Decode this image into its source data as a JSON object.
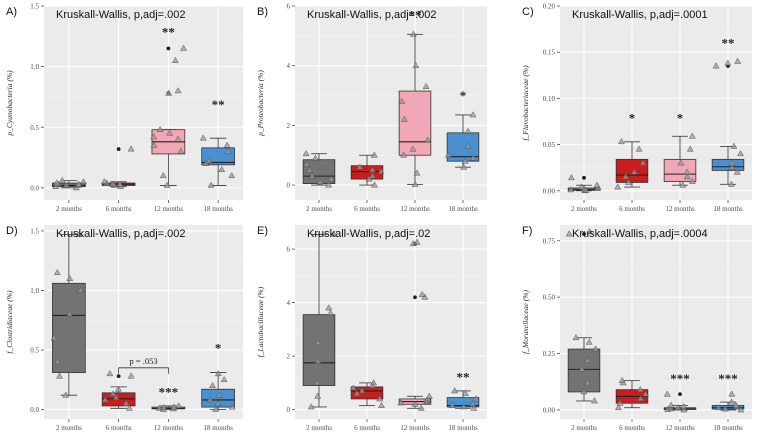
{
  "colors": {
    "panel_bg": "#ebebeb",
    "grid_major": "#ffffff",
    "grid_minor": "#f4f4f4",
    "axis_text": "#4d4d4d",
    "box_2m": "#737373",
    "box_6m": "#c81e1e",
    "box_12m": "#f2a7b6",
    "box_18m": "#4a90cf",
    "point_tri": "#9a9a9a",
    "point_dot": "#222222"
  },
  "chart_data": [
    {
      "id": "A",
      "panel_label": "A)",
      "type": "boxplot",
      "title": "Kruskall-Wallis, p,adj=.002",
      "ylabel": "p_Cyanobacteria (%)",
      "categories": [
        "2 months",
        "6 months",
        "12 months",
        "18 months"
      ],
      "ylim": [
        -0.1,
        1.5
      ],
      "yticks": [
        0.0,
        0.5,
        1.0,
        1.5
      ],
      "ytick_labels": [
        "0.0",
        "0.5",
        "1.0",
        "1.5"
      ],
      "boxes": [
        {
          "min": 0.0,
          "q1": 0.01,
          "median": 0.02,
          "q3": 0.04,
          "max": 0.06
        },
        {
          "min": 0.01,
          "q1": 0.02,
          "median": 0.03,
          "q3": 0.04,
          "max": 0.05
        },
        {
          "min": 0.02,
          "q1": 0.28,
          "median": 0.38,
          "q3": 0.48,
          "max": 0.48
        },
        {
          "min": 0.02,
          "q1": 0.19,
          "median": 0.21,
          "q3": 0.33,
          "max": 0.41
        }
      ],
      "points": [
        [
          0.0,
          0.01,
          0.02,
          0.02,
          0.03,
          0.03,
          0.04,
          0.05,
          0.06
        ],
        [
          0.01,
          0.02,
          0.03,
          0.03,
          0.04,
          0.05,
          0.32
        ],
        [
          0.02,
          0.1,
          0.3,
          0.35,
          0.4,
          0.42,
          0.45,
          0.48,
          0.78,
          0.8,
          1.05,
          1.15
        ],
        [
          0.02,
          0.1,
          0.15,
          0.2,
          0.22,
          0.3,
          0.35,
          0.41
        ]
      ],
      "outliers": [
        [],
        [
          0.32
        ],
        [
          0.78,
          1.15
        ],
        []
      ],
      "significance": [
        "",
        "",
        "**",
        "**"
      ],
      "significance_y": [
        null,
        null,
        1.25,
        0.65
      ]
    },
    {
      "id": "B",
      "panel_label": "B)",
      "type": "boxplot",
      "title": "Kruskall-Wallis, p,adj=.002",
      "ylabel": "p_Proteobacteria (%)",
      "categories": [
        "2 months",
        "6 months",
        "12 months",
        "18 months"
      ],
      "ylim": [
        -0.5,
        6
      ],
      "yticks": [
        0,
        2,
        4,
        6
      ],
      "ytick_labels": [
        "0",
        "2",
        "4",
        "6"
      ],
      "boxes": [
        {
          "min": 0.0,
          "q1": 0.05,
          "median": 0.3,
          "q3": 0.85,
          "max": 1.05
        },
        {
          "min": 0.0,
          "q1": 0.2,
          "median": 0.45,
          "q3": 0.65,
          "max": 1.0
        },
        {
          "min": 0.02,
          "q1": 1.0,
          "median": 1.45,
          "q3": 3.15,
          "max": 5.05
        },
        {
          "min": 0.6,
          "q1": 0.8,
          "median": 0.95,
          "q3": 1.75,
          "max": 2.35
        }
      ],
      "points": [
        [
          0.0,
          0.1,
          0.2,
          0.3,
          0.5,
          0.7,
          0.9,
          1.05
        ],
        [
          0.0,
          0.2,
          0.3,
          0.45,
          0.5,
          0.6,
          1.0
        ],
        [
          0.02,
          0.4,
          1.0,
          1.2,
          1.5,
          2.2,
          2.8,
          3.3,
          4.0,
          5.05
        ],
        [
          0.6,
          0.8,
          0.9,
          1.0,
          1.3,
          1.8,
          2.35
        ]
      ],
      "outliers": [
        [],
        [],
        [],
        []
      ],
      "significance": [
        "",
        "",
        "**",
        "*"
      ],
      "significance_y": [
        null,
        null,
        5.55,
        2.85
      ]
    },
    {
      "id": "C",
      "panel_label": "C)",
      "type": "boxplot",
      "title": "Kruskall-Wallis, p,adj=.0001",
      "ylabel": "f_Flavobacteriaceae (%)",
      "categories": [
        "2 months",
        "6 months",
        "12 months",
        "18 months"
      ],
      "ylim": [
        -0.01,
        0.2
      ],
      "yticks": [
        0.0,
        0.05,
        0.1,
        0.15,
        0.2
      ],
      "ytick_labels": [
        "0.00",
        "0.05",
        "0.10",
        "0.15",
        "0.20"
      ],
      "boxes": [
        {
          "min": 0.0,
          "q1": 0.0005,
          "median": 0.001,
          "q3": 0.003,
          "max": 0.006
        },
        {
          "min": 0.004,
          "q1": 0.009,
          "median": 0.017,
          "q3": 0.034,
          "max": 0.053
        },
        {
          "min": 0.006,
          "q1": 0.01,
          "median": 0.018,
          "q3": 0.034,
          "max": 0.059
        },
        {
          "min": 0.007,
          "q1": 0.022,
          "median": 0.026,
          "q3": 0.034,
          "max": 0.048
        }
      ],
      "points": [
        [
          0.0,
          0.0005,
          0.001,
          0.002,
          0.003,
          0.004,
          0.006,
          0.014
        ],
        [
          0.004,
          0.009,
          0.015,
          0.02,
          0.03,
          0.045,
          0.053
        ],
        [
          0.006,
          0.01,
          0.015,
          0.02,
          0.03,
          0.045,
          0.059
        ],
        [
          0.007,
          0.02,
          0.025,
          0.03,
          0.04,
          0.048,
          0.135,
          0.138,
          0.14
        ]
      ],
      "outliers": [
        [
          0.014
        ],
        [],
        [],
        [
          0.135
        ]
      ],
      "significance": [
        "",
        "*",
        "*",
        "**"
      ],
      "significance_y": [
        null,
        0.074,
        0.074,
        0.155
      ]
    },
    {
      "id": "D",
      "panel_label": "D)",
      "type": "boxplot",
      "title": "Kruskall-Wallis, p,adj=.002",
      "ylabel": "f_Clostridiaceae (%)",
      "categories": [
        "2 months",
        "6 months",
        "12 months",
        "18 months"
      ],
      "ylim": [
        -0.08,
        1.55
      ],
      "yticks": [
        0.0,
        0.5,
        1.0,
        1.5
      ],
      "ytick_labels": [
        "0.0",
        "0.5",
        "1.0",
        "1.5"
      ],
      "boxes": [
        {
          "min": 0.12,
          "q1": 0.31,
          "median": 0.79,
          "q3": 1.06,
          "max": 1.47
        },
        {
          "min": 0.01,
          "q1": 0.03,
          "median": 0.09,
          "q3": 0.14,
          "max": 0.19
        },
        {
          "min": 0.0,
          "q1": 0.005,
          "median": 0.01,
          "q3": 0.02,
          "max": 0.03
        },
        {
          "min": 0.0,
          "q1": 0.02,
          "median": 0.08,
          "q3": 0.17,
          "max": 0.31
        }
      ],
      "points": [
        [
          0.12,
          0.28,
          0.4,
          0.6,
          0.8,
          1.0,
          1.1,
          1.15,
          1.47
        ],
        [
          0.01,
          0.05,
          0.08,
          0.1,
          0.13,
          0.17,
          0.28,
          0.3
        ],
        [
          0.0,
          0.005,
          0.01,
          0.015,
          0.02,
          0.03
        ],
        [
          0.0,
          0.02,
          0.05,
          0.08,
          0.12,
          0.2,
          0.25,
          0.3
        ]
      ],
      "outliers": [
        [],
        [
          0.28
        ],
        [],
        []
      ],
      "significance": [
        "",
        "",
        "***",
        "*"
      ],
      "significance_y": [
        null,
        null,
        0.11,
        0.48
      ],
      "bracket": {
        "from": 1,
        "to": 2,
        "y": 0.35,
        "drop": 0.05,
        "label": "p = .053"
      }
    },
    {
      "id": "E",
      "panel_label": "E)",
      "type": "boxplot",
      "title": "Kruskall-Wallis, p,adj=.02",
      "ylabel": "f_Lactobacillaceae (%)",
      "categories": [
        "2 months",
        "6 months",
        "12 months",
        "18 months"
      ],
      "ylim": [
        -0.35,
        6.9
      ],
      "yticks": [
        0,
        2,
        4,
        6
      ],
      "ytick_labels": [
        "0",
        "2",
        "4",
        "6"
      ],
      "boxes": [
        {
          "min": 0.1,
          "q1": 0.9,
          "median": 1.75,
          "q3": 3.55,
          "max": 6.55
        },
        {
          "min": 0.15,
          "q1": 0.4,
          "median": 0.7,
          "q3": 0.85,
          "max": 1.0
        },
        {
          "min": 0.05,
          "q1": 0.2,
          "median": 0.3,
          "q3": 0.4,
          "max": 0.5
        },
        {
          "min": 0.05,
          "q1": 0.1,
          "median": 0.15,
          "q3": 0.45,
          "max": 0.7
        }
      ],
      "points": [
        [
          0.1,
          0.5,
          1.0,
          1.8,
          2.5,
          3.6,
          3.8,
          6.55
        ],
        [
          0.15,
          0.4,
          0.6,
          0.7,
          0.8,
          0.9,
          1.0
        ],
        [
          0.05,
          0.2,
          0.25,
          0.3,
          0.35,
          0.4,
          0.5,
          4.2,
          4.3,
          6.2,
          6.25
        ],
        [
          0.05,
          0.1,
          0.15,
          0.2,
          0.4,
          0.6,
          0.7
        ]
      ],
      "outliers": [
        [],
        [],
        [
          4.2,
          6.2
        ],
        []
      ],
      "significance": [
        "",
        "",
        "",
        "**"
      ],
      "significance_y": [
        null,
        null,
        null,
        1.05
      ]
    },
    {
      "id": "F",
      "panel_label": "F)",
      "type": "boxplot",
      "title": "Kruskall-Wallis, p,adj=.0004",
      "ylabel": "f_Moraxellaceae (%)",
      "categories": [
        "2 months",
        "6 months",
        "12 months",
        "18 months"
      ],
      "ylim": [
        -0.04,
        0.82
      ],
      "yticks": [
        0.0,
        0.25,
        0.5,
        0.75
      ],
      "ytick_labels": [
        "0.00",
        "0.25",
        "0.50",
        "0.75"
      ],
      "boxes": [
        {
          "min": 0.04,
          "q1": 0.08,
          "median": 0.18,
          "q3": 0.27,
          "max": 0.32
        },
        {
          "min": 0.01,
          "q1": 0.03,
          "median": 0.06,
          "q3": 0.09,
          "max": 0.13
        },
        {
          "min": 0.0,
          "q1": 0.002,
          "median": 0.005,
          "q3": 0.01,
          "max": 0.02
        },
        {
          "min": 0.0,
          "q1": 0.004,
          "median": 0.01,
          "q3": 0.02,
          "max": 0.035
        }
      ],
      "points": [
        [
          0.04,
          0.08,
          0.12,
          0.18,
          0.22,
          0.27,
          0.3,
          0.32,
          0.78,
          0.79
        ],
        [
          0.01,
          0.03,
          0.05,
          0.07,
          0.09,
          0.12,
          0.13
        ],
        [
          0.0,
          0.002,
          0.005,
          0.01,
          0.015,
          0.02,
          0.07
        ],
        [
          0.0,
          0.004,
          0.01,
          0.015,
          0.02,
          0.035,
          0.07
        ]
      ],
      "outliers": [
        [
          0.78
        ],
        [],
        [
          0.07
        ],
        []
      ],
      "significance": [
        "",
        "",
        "***",
        "***"
      ],
      "significance_y": [
        null,
        null,
        0.12,
        0.12
      ]
    }
  ]
}
